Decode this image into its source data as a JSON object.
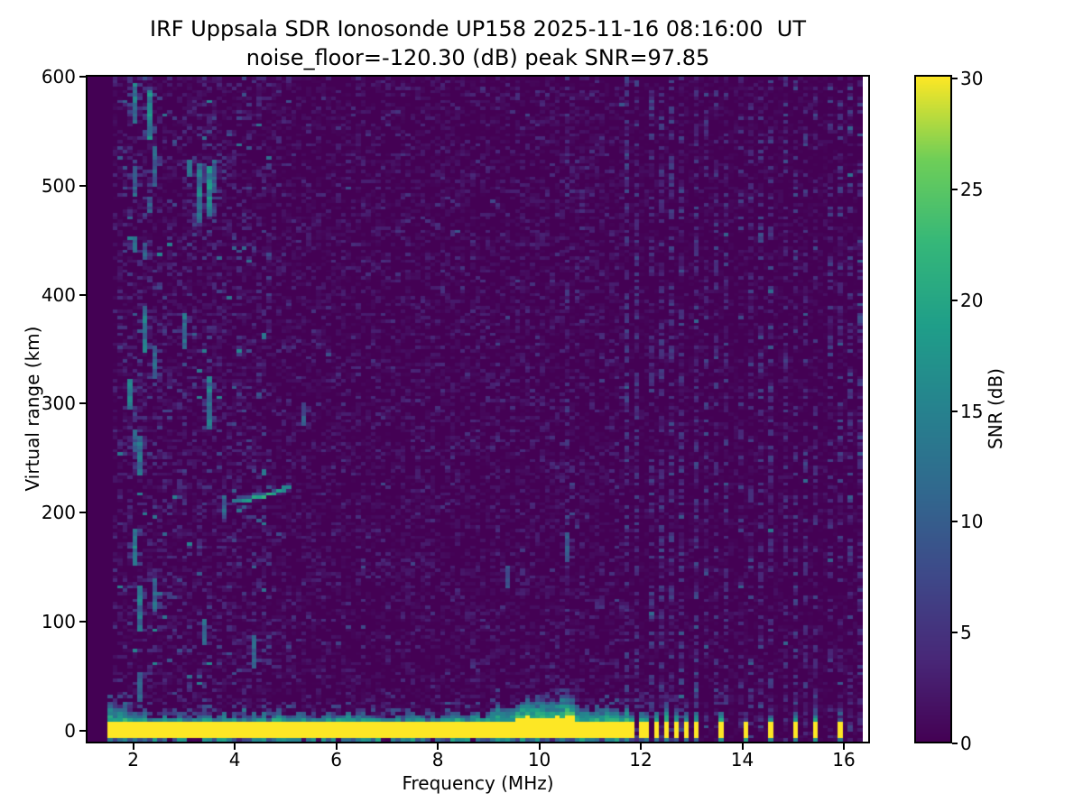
{
  "chart_data": {
    "type": "heatmap",
    "title": "IRF Uppsala SDR Ionosonde UP158 2025-11-16 08:16:00  UT",
    "subtitle": "noise_floor=-120.30 (dB) peak SNR=97.85",
    "station": "UP158",
    "timestamp_ut": "2025-11-16 08:16:00",
    "noise_floor_db": -120.3,
    "peak_snr_db": 97.85,
    "xlabel": "Frequency (MHz)",
    "ylabel": "Virtual range (km)",
    "colorbar_label": "SNR (dB)",
    "xlim_mhz": [
      1.1,
      16.48
    ],
    "ylim_km": [
      -10,
      600
    ],
    "snr_range_db": [
      0,
      30
    ],
    "x_ticks_mhz": [
      2,
      4,
      6,
      8,
      10,
      12,
      14,
      16
    ],
    "y_ticks_km": [
      0,
      100,
      200,
      300,
      400,
      500,
      600
    ],
    "colorbar_ticks_db": [
      0,
      5,
      10,
      15,
      20,
      25,
      30
    ],
    "colormap": "viridis",
    "colormap_stops": [
      "#440154",
      "#482878",
      "#3e4989",
      "#31688e",
      "#26828e",
      "#1f9e89",
      "#35b779",
      "#6ece58",
      "#fde725"
    ],
    "data_start_mhz": 1.56,
    "data_end_mhz": 16.37,
    "bin_mhz": 0.098,
    "bin_km": 3.05,
    "ground_pulse_band": {
      "freq_mhz": [
        1.56,
        11.79
      ],
      "range_km": [
        -5,
        8
      ],
      "snr_db": 30,
      "bulge_mhz": [
        9.5,
        10.7
      ]
    },
    "discrete_tx_bars_mhz": [
      11.98,
      12.16,
      12.34,
      12.52,
      12.7,
      12.88,
      13.06,
      13.6,
      14.08,
      14.54,
      15.02,
      15.5,
      15.96
    ],
    "rf_channel_columns_mhz": {
      "start": 11.75,
      "end": 16.37,
      "spacing": 0.22
    },
    "echo_trace": {
      "snr_db": 16,
      "points_mhz_km": [
        [
          4.02,
          210.5
        ],
        [
          4.2,
          211.5
        ],
        [
          4.4,
          213
        ],
        [
          4.6,
          215.5
        ],
        [
          4.8,
          218.5
        ],
        [
          5.0,
          222
        ],
        [
          5.14,
          225.5
        ]
      ]
    },
    "interference_streaks": [
      {
        "f": 2.04,
        "km": [
          558,
          592
        ],
        "snr": 14
      },
      {
        "f": 2.04,
        "km": [
          492,
          517
        ],
        "snr": 11
      },
      {
        "f": 2.0,
        "km": [
          440,
          455
        ],
        "snr": 12
      },
      {
        "f": 1.96,
        "km": [
          296,
          321
        ],
        "snr": 13
      },
      {
        "f": 2.01,
        "km": [
          257,
          276
        ],
        "snr": 10
      },
      {
        "f": 2.08,
        "km": [
          240,
          273
        ],
        "snr": 12
      },
      {
        "f": 2.06,
        "km": [
          153,
          186
        ],
        "snr": 14
      },
      {
        "f": 2.08,
        "km": [
          91,
          132
        ],
        "snr": 13
      },
      {
        "f": 2.1,
        "km": [
          29,
          54
        ],
        "snr": 11
      },
      {
        "f": 2.37,
        "km": [
          545,
          588
        ],
        "snr": 15
      },
      {
        "f": 2.44,
        "km": [
          500,
          534
        ],
        "snr": 11
      },
      {
        "f": 2.28,
        "km": [
          477,
          491
        ],
        "snr": 10
      },
      {
        "f": 2.2,
        "km": [
          433,
          447
        ],
        "snr": 10
      },
      {
        "f": 2.18,
        "km": [
          348,
          389
        ],
        "snr": 13
      },
      {
        "f": 2.44,
        "km": [
          323,
          352
        ],
        "snr": 11
      },
      {
        "f": 2.42,
        "km": [
          112,
          141
        ],
        "snr": 12
      },
      {
        "f": 3.06,
        "km": [
          509,
          523
        ],
        "snr": 11
      },
      {
        "f": 3.02,
        "km": [
          352,
          385
        ],
        "snr": 12
      },
      {
        "f": 3.32,
        "km": [
          468,
          521
        ],
        "snr": 14
      },
      {
        "f": 3.47,
        "km": [
          472,
          517
        ],
        "snr": 16
      },
      {
        "f": 3.47,
        "km": [
          277,
          323
        ],
        "snr": 13
      },
      {
        "f": 3.45,
        "km": [
          79,
          103
        ],
        "snr": 11
      },
      {
        "f": 3.6,
        "km": [
          495,
          523
        ],
        "snr": 10
      },
      {
        "f": 3.79,
        "km": [
          195,
          215
        ],
        "snr": 11
      },
      {
        "f": 4.41,
        "km": [
          58,
          87
        ],
        "snr": 12
      },
      {
        "f": 5.33,
        "km": [
          281,
          302
        ],
        "snr": 9
      },
      {
        "f": 9.34,
        "km": [
          132,
          153
        ],
        "snr": 8
      },
      {
        "f": 10.55,
        "km": [
          157,
          182
        ],
        "snr": 9
      }
    ],
    "noise_texture": {
      "seed": 20251116,
      "faint_line_mhz": 10.55
    }
  }
}
